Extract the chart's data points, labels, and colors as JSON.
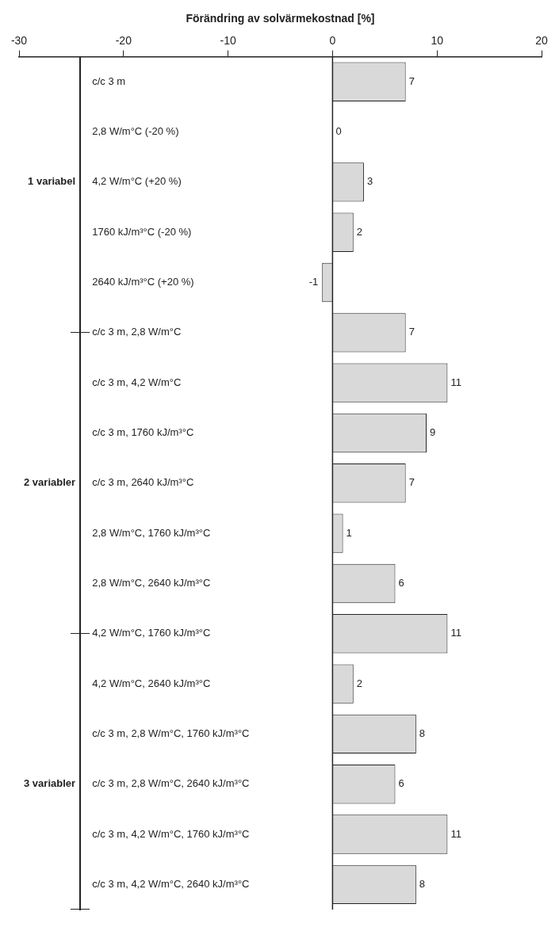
{
  "chart_data": {
    "type": "bar",
    "orientation": "horizontal",
    "xlabel": "Förändring av solvärmekostnad [%]",
    "categories": [
      "c/c 3 m",
      "2,8 W/m°C (-20 %)",
      "4,2 W/m°C (+20 %)",
      "1760 kJ/m³°C (-20 %)",
      "2640 kJ/m³°C (+20 %)",
      "c/c 3 m, 2,8 W/m°C",
      "c/c 3 m, 4,2 W/m°C",
      "c/c 3 m, 1760 kJ/m³°C",
      "c/c 3 m, 2640 kJ/m³°C",
      "2,8 W/m°C, 1760 kJ/m³°C",
      "2,8 W/m°C, 2640 kJ/m³°C",
      "4,2 W/m°C, 1760 kJ/m³°C",
      "4,2 W/m°C, 2640 kJ/m³°C",
      "c/c 3 m, 2,8 W/m°C, 1760 kJ/m³°C",
      "c/c 3 m, 2,8 W/m°C, 2640 kJ/m³°C",
      "c/c 3 m, 4,2 W/m°C, 1760 kJ/m³°C",
      "c/c 3 m, 4,2 W/m°C, 2640 kJ/m³°C"
    ],
    "values": [
      7,
      0,
      3,
      2,
      -1,
      7,
      11,
      9,
      7,
      1,
      6,
      11,
      2,
      8,
      6,
      11,
      8
    ],
    "color": "#d9d9d9",
    "data_labels": true,
    "xlim": [
      -30,
      20
    ],
    "xticks": [
      -30,
      -20,
      -10,
      0,
      10,
      20
    ],
    "ref_lines": [
      {
        "axis": "x",
        "value": 0,
        "color": "#222222"
      }
    ],
    "annotations": [
      "1 variabel",
      "2 variabler",
      "3 variabler"
    ]
  }
}
